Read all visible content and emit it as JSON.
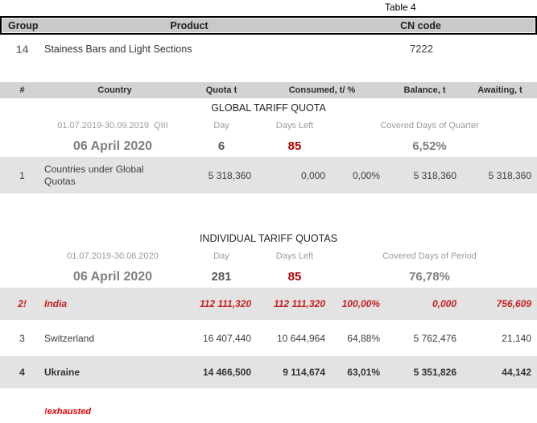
{
  "page_title": "Table 4",
  "colors": {
    "header_border": "#000000",
    "header1_bg": "#c9c9c9",
    "header2_bg": "#d3d3d3",
    "row_gray_bg": "#e3e3e3",
    "alert_red": "#c00000",
    "muted_gray": "#9a9a9a"
  },
  "product_table": {
    "headers": {
      "group": "Group",
      "product": "Product",
      "cn": "CN code"
    },
    "row": {
      "group": "14",
      "product": "Stainess Bars and Light Sections",
      "cn": "7222"
    }
  },
  "quota_table": {
    "headers": {
      "num": "#",
      "country": "Country",
      "quota": "Quota t",
      "consumed": "Consumed, t/ %",
      "balance": "Balance, t",
      "awaiting": "Awaiting, t"
    }
  },
  "global": {
    "title": "GLOBAL TARIFF QUOTA",
    "period": "01.07.2019-30.09.2019  QIII",
    "day_label": "Day",
    "days_left_label": "Days Left",
    "covered_label": "Covered Days of Quarter",
    "date": "06 April 2020",
    "day": "6",
    "days_left": "85",
    "covered": "6,52%",
    "rows": [
      {
        "num": "1",
        "country": "Countries under Global Quotas",
        "quota": "5 318,360",
        "consumed_t": "0,000",
        "consumed_pct": "0,00%",
        "balance": "5 318,360",
        "awaiting": "5 318,360"
      }
    ]
  },
  "individual": {
    "title": "INDIVIDUAL TARIFF QUOTAS",
    "period": "01.07.2019-30.06.2020",
    "day_label": "Day",
    "days_left_label": "Days Left",
    "covered_label": "Covered Days of Period",
    "date": "06 April 2020",
    "day": "281",
    "days_left": "85",
    "covered": "76,78%",
    "rows": [
      {
        "num": "2!",
        "country": "India",
        "quota": "112 111,320",
        "consumed_t": "112 111,320",
        "consumed_pct": "100,00%",
        "balance": "0,000",
        "awaiting": "756,609"
      },
      {
        "num": "3",
        "country": "Switzerland",
        "quota": "16 407,440",
        "consumed_t": "10 644,964",
        "consumed_pct": "64,88%",
        "balance": "5 762,476",
        "awaiting": "21,140"
      },
      {
        "num": "4",
        "country": "Ukraine",
        "quota": "14 466,500",
        "consumed_t": "9 114,674",
        "consumed_pct": "63,01%",
        "balance": "5 351,826",
        "awaiting": "44,142"
      }
    ]
  },
  "footnote": "!exhausted"
}
